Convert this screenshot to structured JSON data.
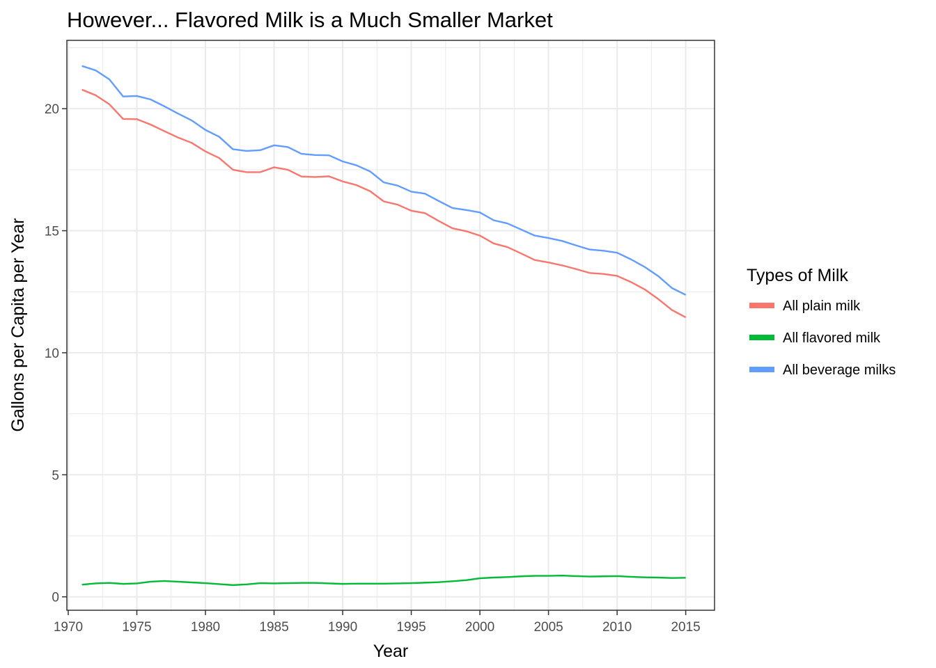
{
  "chart_data": {
    "type": "line",
    "title": "However... Flavored Milk is a Much Smaller Market",
    "xlabel": "Year",
    "ylabel": "Gallons per Capita per Year",
    "xlim": [
      1969.9,
      2017.1
    ],
    "ylim": [
      -0.55,
      22.8
    ],
    "x_ticks": [
      1970,
      1975,
      1980,
      1985,
      1990,
      1995,
      2000,
      2005,
      2010,
      2015
    ],
    "x_tick_labels": [
      "1970",
      "1975",
      "1980",
      "1985",
      "1990",
      "1995",
      "2000",
      "2005",
      "2010",
      "2015"
    ],
    "y_ticks": [
      0,
      5,
      10,
      15,
      20
    ],
    "y_tick_labels": [
      "0",
      "5",
      "10",
      "15",
      "20"
    ],
    "grid": true,
    "legend": {
      "title": "Types of Milk",
      "position": "right"
    },
    "x": [
      1971,
      1972,
      1973,
      1974,
      1975,
      1976,
      1977,
      1978,
      1979,
      1980,
      1981,
      1982,
      1983,
      1984,
      1985,
      1986,
      1987,
      1988,
      1989,
      1990,
      1991,
      1992,
      1993,
      1994,
      1995,
      1996,
      1997,
      1998,
      1999,
      2000,
      2001,
      2002,
      2003,
      2004,
      2005,
      2006,
      2007,
      2008,
      2009,
      2010,
      2011,
      2012,
      2013,
      2014,
      2015
    ],
    "series": [
      {
        "name": "All plain milk",
        "color": "#F8766D",
        "values": [
          20.78,
          20.55,
          20.18,
          19.58,
          19.57,
          19.35,
          19.08,
          18.82,
          18.6,
          18.25,
          17.98,
          17.5,
          17.4,
          17.4,
          17.6,
          17.5,
          17.22,
          17.2,
          17.23,
          17.02,
          16.87,
          16.62,
          16.2,
          16.07,
          15.82,
          15.72,
          15.4,
          15.1,
          14.98,
          14.8,
          14.48,
          14.33,
          14.07,
          13.8,
          13.7,
          13.58,
          13.43,
          13.27,
          13.23,
          13.15,
          12.9,
          12.6,
          12.2,
          11.75,
          11.45
        ]
      },
      {
        "name": "All flavored milk",
        "color": "#00BA38",
        "values": [
          0.5,
          0.55,
          0.57,
          0.53,
          0.55,
          0.62,
          0.65,
          0.62,
          0.59,
          0.56,
          0.52,
          0.48,
          0.51,
          0.56,
          0.55,
          0.56,
          0.57,
          0.57,
          0.55,
          0.53,
          0.54,
          0.54,
          0.54,
          0.55,
          0.56,
          0.58,
          0.6,
          0.64,
          0.68,
          0.76,
          0.79,
          0.81,
          0.84,
          0.86,
          0.86,
          0.87,
          0.85,
          0.83,
          0.84,
          0.85,
          0.82,
          0.8,
          0.79,
          0.77,
          0.78
        ]
      },
      {
        "name": "All beverage milks",
        "color": "#619CFF",
        "values": [
          21.75,
          21.57,
          21.2,
          20.5,
          20.52,
          20.38,
          20.1,
          19.8,
          19.52,
          19.13,
          18.85,
          18.34,
          18.27,
          18.3,
          18.5,
          18.43,
          18.15,
          18.1,
          18.09,
          17.84,
          17.68,
          17.43,
          16.98,
          16.85,
          16.6,
          16.52,
          16.22,
          15.93,
          15.85,
          15.75,
          15.43,
          15.3,
          15.05,
          14.8,
          14.7,
          14.58,
          14.4,
          14.23,
          14.18,
          14.1,
          13.83,
          13.52,
          13.14,
          12.65,
          12.37
        ]
      }
    ]
  }
}
